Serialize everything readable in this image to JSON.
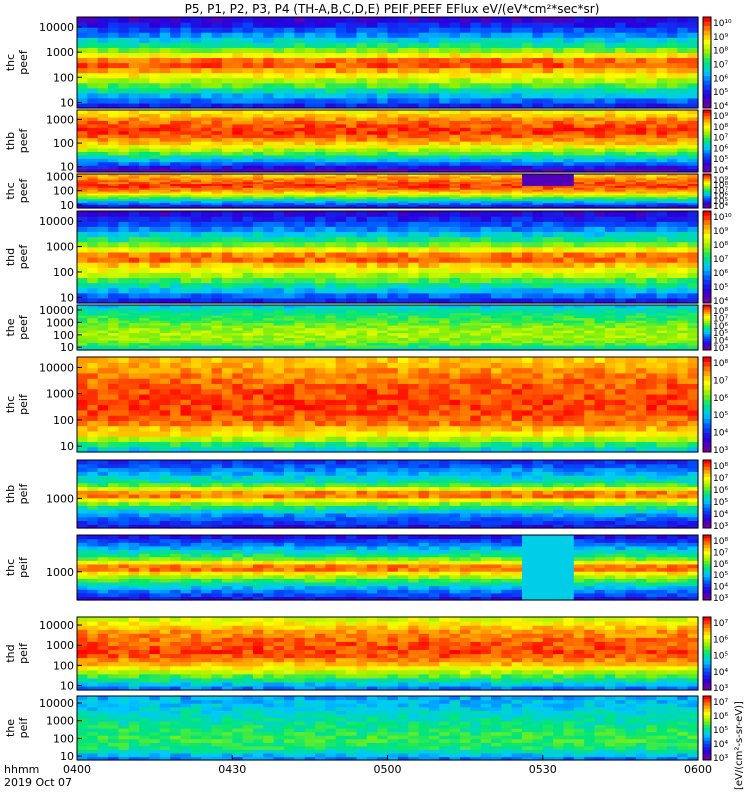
{
  "title": "P5, P1, P2, P3, P4 (TH-A,B,C,D,E) PEIF,PEEF EFlux eV/(eV*cm²*sec*sr)",
  "footer": {
    "line1": "hhmm",
    "line2": "2019 Oct 07"
  },
  "colorbar_units_label": "[eV/(cm²-s-sr-eV)]",
  "chart_data": {
    "type": "heatmap",
    "x_axis": {
      "ticks": [
        "0400",
        "0430",
        "0500",
        "0530",
        "0600"
      ],
      "range": [
        "04:00",
        "06:00"
      ]
    },
    "panels": [
      {
        "ylabel": [
          "thc",
          "peef"
        ],
        "yticks": [
          "10",
          "100",
          "1000",
          "10000"
        ],
        "ylim": [
          6,
          25000
        ],
        "scale": "log",
        "bg": "#ffff00",
        "base": [
          0.18,
          0.45,
          0.72,
          0.97,
          0.55,
          0.3,
          0.1
        ],
        "cbar": [
          "10¹⁰",
          "10⁹",
          "10⁸",
          "10⁷",
          "10⁶",
          "10⁵",
          "10⁴"
        ]
      },
      {
        "ylabel": [
          "thb",
          "peef"
        ],
        "yticks": [
          "10",
          "100",
          "1000"
        ],
        "ylim": [
          6,
          2500
        ],
        "scale": "log",
        "bg": "#ff3000",
        "base": [
          0.05,
          0.35,
          0.62,
          0.85,
          0.97,
          0.9,
          0.75
        ],
        "cbar": [
          "10⁹",
          "10⁸",
          "10⁷",
          "10⁶",
          "10⁵",
          "10⁴"
        ]
      },
      {
        "ylabel": [
          "thc",
          "peef"
        ],
        "yticks": [
          "10",
          "100",
          "1000"
        ],
        "ylim": [
          6,
          1500
        ],
        "scale": "log",
        "bg": "#ff2000",
        "base": [
          0.1,
          0.35,
          0.6,
          0.85,
          0.96,
          0.9,
          0.8
        ],
        "cbar": [
          "10⁹",
          "10⁸",
          "10⁷",
          "10⁶",
          "10⁵",
          "10⁴"
        ]
      },
      {
        "ylabel": [
          "thd",
          "peef"
        ],
        "yticks": [
          "10",
          "100",
          "1000",
          "10000"
        ],
        "ylim": [
          6,
          25000
        ],
        "scale": "log",
        "bg": "#ffff00",
        "base": [
          0.18,
          0.45,
          0.7,
          0.95,
          0.55,
          0.3,
          0.12
        ],
        "cbar": [
          "10¹⁰",
          "10⁹",
          "10⁸",
          "10⁷",
          "10⁶",
          "10⁵",
          "10⁴"
        ]
      },
      {
        "ylabel": [
          "the",
          "peef"
        ],
        "yticks": [
          "10",
          "100",
          "1000",
          "10000"
        ],
        "ylim": [
          6,
          25000
        ],
        "scale": "log",
        "bg": "#ffff00",
        "base": [
          0.45,
          0.6,
          0.65,
          0.62,
          0.55,
          0.5,
          0.4
        ],
        "cbar": [
          "10⁸",
          "10⁷",
          "10⁶",
          "10⁵",
          "10⁴",
          "10³"
        ]
      },
      {
        "ylabel": [
          "thc",
          "peif"
        ],
        "yticks": [
          "10",
          "100",
          "1000",
          "10000"
        ],
        "ylim": [
          6,
          25000
        ],
        "scale": "log",
        "bg": "#ff3000",
        "base": [
          0.4,
          0.75,
          0.92,
          0.95,
          0.93,
          0.88,
          0.8
        ],
        "cbar": [
          "10⁸",
          "10⁷",
          "10⁶",
          "10⁵",
          "10⁴",
          "10³"
        ]
      },
      {
        "ylabel": [
          "thb",
          "peif"
        ],
        "yticks": [
          "1000"
        ],
        "ylim": [
          100,
          20000
        ],
        "scale": "log",
        "bg": "#00ccff",
        "base": [
          0.15,
          0.3,
          0.55,
          0.95,
          0.5,
          0.35,
          0.2
        ],
        "cbar": [
          "10⁸",
          "10⁷",
          "10⁶",
          "10⁵",
          "10⁴",
          "10³"
        ]
      },
      {
        "ylabel": [
          "thc",
          "peif"
        ],
        "yticks": [
          "1000"
        ],
        "ylim": [
          100,
          20000
        ],
        "scale": "log",
        "bg": "#00ccff",
        "base": [
          0.15,
          0.35,
          0.6,
          0.95,
          0.55,
          0.35,
          0.15
        ],
        "cbar": [
          "10⁸",
          "10⁷",
          "10⁶",
          "10⁵",
          "10⁴",
          "10³"
        ]
      },
      {
        "ylabel": [
          "thd",
          "peif"
        ],
        "yticks": [
          "10",
          "100",
          "1000",
          "10000"
        ],
        "ylim": [
          6,
          25000
        ],
        "scale": "log",
        "bg": "#ff3000",
        "base": [
          0.3,
          0.55,
          0.8,
          0.95,
          0.92,
          0.85,
          0.7
        ],
        "cbar": [
          "10⁷",
          "10⁶",
          "10⁵",
          "10⁴",
          "10³"
        ]
      },
      {
        "ylabel": [
          "the",
          "peif"
        ],
        "yticks": [
          "10",
          "100",
          "1000",
          "10000"
        ],
        "ylim": [
          6,
          25000
        ],
        "scale": "log",
        "bg": "#00ff99",
        "base": [
          0.3,
          0.5,
          0.55,
          0.5,
          0.45,
          0.4,
          0.35
        ],
        "cbar": [
          "10⁷",
          "10⁶",
          "10⁵",
          "10⁴",
          "10³"
        ]
      }
    ]
  }
}
